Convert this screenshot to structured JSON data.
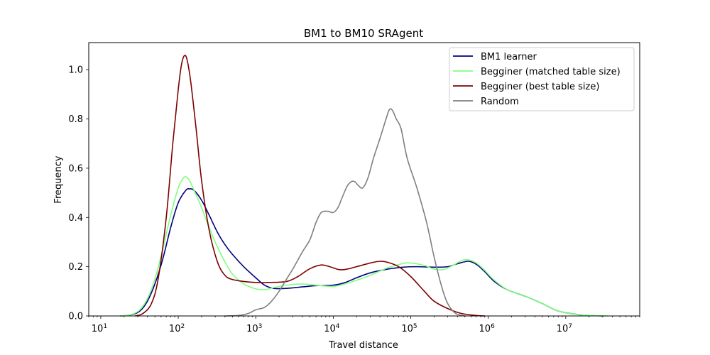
{
  "chart_data": {
    "type": "line",
    "title": "BM1 to BM10 SRAgent",
    "xlabel": "Travel distance",
    "ylabel": "Frequency",
    "xscale": "log",
    "xlim": [
      7.0,
      90000000
    ],
    "ylim": [
      0.0,
      1.11
    ],
    "xticks": [
      {
        "value": 10,
        "base": "10",
        "exp": "1"
      },
      {
        "value": 100,
        "base": "10",
        "exp": "2"
      },
      {
        "value": 1000,
        "base": "10",
        "exp": "3"
      },
      {
        "value": 10000,
        "base": "10",
        "exp": "4"
      },
      {
        "value": 100000,
        "base": "10",
        "exp": "5"
      },
      {
        "value": 1000000,
        "base": "10",
        "exp": "6"
      },
      {
        "value": 10000000,
        "base": "10",
        "exp": "7"
      }
    ],
    "yticks": [
      {
        "value": 0.0,
        "label": "0.0"
      },
      {
        "value": 0.2,
        "label": "0.2"
      },
      {
        "value": 0.4,
        "label": "0.4"
      },
      {
        "value": 0.6,
        "label": "0.6"
      },
      {
        "value": 0.8,
        "label": "0.8"
      },
      {
        "value": 1.0,
        "label": "1.0"
      }
    ],
    "grid": false,
    "legend_position": "top-right",
    "series": [
      {
        "name": "BM1 learner",
        "color": "#00007f",
        "points": [
          [
            18,
            0.0
          ],
          [
            25,
            0.005
          ],
          [
            32,
            0.02
          ],
          [
            40,
            0.06
          ],
          [
            50,
            0.13
          ],
          [
            63,
            0.23
          ],
          [
            80,
            0.36
          ],
          [
            100,
            0.46
          ],
          [
            125,
            0.51
          ],
          [
            140,
            0.516
          ],
          [
            160,
            0.51
          ],
          [
            200,
            0.47
          ],
          [
            250,
            0.41
          ],
          [
            320,
            0.34
          ],
          [
            400,
            0.29
          ],
          [
            500,
            0.25
          ],
          [
            700,
            0.2
          ],
          [
            1000,
            0.155
          ],
          [
            1300,
            0.125
          ],
          [
            1700,
            0.112
          ],
          [
            2500,
            0.112
          ],
          [
            4000,
            0.118
          ],
          [
            6000,
            0.123
          ],
          [
            10000,
            0.125
          ],
          [
            14000,
            0.135
          ],
          [
            20000,
            0.155
          ],
          [
            30000,
            0.175
          ],
          [
            50000,
            0.19
          ],
          [
            80000,
            0.198
          ],
          [
            120000,
            0.2
          ],
          [
            200000,
            0.198
          ],
          [
            300000,
            0.2
          ],
          [
            400000,
            0.212
          ],
          [
            550000,
            0.222
          ],
          [
            700000,
            0.21
          ],
          [
            900000,
            0.18
          ],
          [
            1200000,
            0.14
          ],
          [
            1800000,
            0.105
          ],
          [
            3000000,
            0.08
          ],
          [
            5000000,
            0.05
          ],
          [
            8000000,
            0.02
          ],
          [
            15000000,
            0.005
          ],
          [
            30000000,
            0.0
          ]
        ]
      },
      {
        "name": "Begginer (matched table size)",
        "color": "#7fff7f",
        "points": [
          [
            18,
            0.0
          ],
          [
            25,
            0.006
          ],
          [
            32,
            0.025
          ],
          [
            40,
            0.07
          ],
          [
            50,
            0.15
          ],
          [
            63,
            0.27
          ],
          [
            80,
            0.41
          ],
          [
            100,
            0.52
          ],
          [
            115,
            0.558
          ],
          [
            125,
            0.565
          ],
          [
            140,
            0.55
          ],
          [
            160,
            0.51
          ],
          [
            200,
            0.44
          ],
          [
            250,
            0.36
          ],
          [
            320,
            0.28
          ],
          [
            400,
            0.22
          ],
          [
            500,
            0.17
          ],
          [
            700,
            0.13
          ],
          [
            1000,
            0.11
          ],
          [
            1300,
            0.106
          ],
          [
            1700,
            0.115
          ],
          [
            2500,
            0.125
          ],
          [
            4000,
            0.13
          ],
          [
            6000,
            0.125
          ],
          [
            10000,
            0.12
          ],
          [
            14000,
            0.13
          ],
          [
            20000,
            0.145
          ],
          [
            30000,
            0.165
          ],
          [
            50000,
            0.195
          ],
          [
            80000,
            0.213
          ],
          [
            100000,
            0.215
          ],
          [
            150000,
            0.205
          ],
          [
            200000,
            0.19
          ],
          [
            260000,
            0.188
          ],
          [
            350000,
            0.205
          ],
          [
            450000,
            0.225
          ],
          [
            550000,
            0.228
          ],
          [
            700000,
            0.215
          ],
          [
            900000,
            0.185
          ],
          [
            1200000,
            0.145
          ],
          [
            1800000,
            0.105
          ],
          [
            3000000,
            0.08
          ],
          [
            5000000,
            0.05
          ],
          [
            8000000,
            0.02
          ],
          [
            15000000,
            0.005
          ],
          [
            35000000,
            0.0
          ]
        ]
      },
      {
        "name": "Begginer (best table size)",
        "color": "#7f0000",
        "points": [
          [
            28,
            0.0
          ],
          [
            35,
            0.01
          ],
          [
            45,
            0.05
          ],
          [
            55,
            0.15
          ],
          [
            70,
            0.4
          ],
          [
            85,
            0.7
          ],
          [
            100,
            0.92
          ],
          [
            110,
            1.02
          ],
          [
            120,
            1.057
          ],
          [
            130,
            1.04
          ],
          [
            145,
            0.95
          ],
          [
            170,
            0.76
          ],
          [
            200,
            0.55
          ],
          [
            250,
            0.35
          ],
          [
            320,
            0.22
          ],
          [
            400,
            0.165
          ],
          [
            500,
            0.148
          ],
          [
            700,
            0.14
          ],
          [
            1000,
            0.136
          ],
          [
            1500,
            0.136
          ],
          [
            2500,
            0.14
          ],
          [
            3500,
            0.16
          ],
          [
            5000,
            0.192
          ],
          [
            7000,
            0.207
          ],
          [
            9000,
            0.2
          ],
          [
            12000,
            0.188
          ],
          [
            15000,
            0.19
          ],
          [
            20000,
            0.2
          ],
          [
            30000,
            0.215
          ],
          [
            40000,
            0.222
          ],
          [
            50000,
            0.218
          ],
          [
            70000,
            0.2
          ],
          [
            100000,
            0.16
          ],
          [
            150000,
            0.1
          ],
          [
            200000,
            0.06
          ],
          [
            300000,
            0.03
          ],
          [
            450000,
            0.01
          ],
          [
            700000,
            0.002
          ],
          [
            900000,
            0.0
          ]
        ]
      },
      {
        "name": "Random",
        "color": "#7f7f7f",
        "points": [
          [
            400,
            0.0
          ],
          [
            600,
            0.002
          ],
          [
            800,
            0.01
          ],
          [
            1000,
            0.025
          ],
          [
            1300,
            0.035
          ],
          [
            1600,
            0.06
          ],
          [
            2000,
            0.1
          ],
          [
            2500,
            0.15
          ],
          [
            3000,
            0.19
          ],
          [
            4000,
            0.26
          ],
          [
            5000,
            0.31
          ],
          [
            6000,
            0.38
          ],
          [
            7000,
            0.42
          ],
          [
            8500,
            0.425
          ],
          [
            10000,
            0.42
          ],
          [
            11500,
            0.44
          ],
          [
            13000,
            0.48
          ],
          [
            15000,
            0.525
          ],
          [
            17000,
            0.545
          ],
          [
            19000,
            0.545
          ],
          [
            21000,
            0.53
          ],
          [
            24000,
            0.52
          ],
          [
            28000,
            0.56
          ],
          [
            33000,
            0.64
          ],
          [
            40000,
            0.72
          ],
          [
            48000,
            0.8
          ],
          [
            53000,
            0.838
          ],
          [
            58000,
            0.835
          ],
          [
            65000,
            0.8
          ],
          [
            75000,
            0.76
          ],
          [
            90000,
            0.64
          ],
          [
            120000,
            0.52
          ],
          [
            160000,
            0.38
          ],
          [
            200000,
            0.24
          ],
          [
            250000,
            0.12
          ],
          [
            300000,
            0.05
          ],
          [
            380000,
            0.01
          ],
          [
            500000,
            0.0
          ]
        ]
      }
    ]
  }
}
